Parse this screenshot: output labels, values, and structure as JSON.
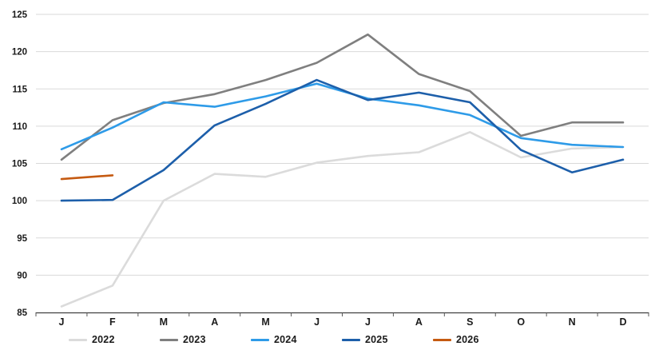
{
  "chart_data": {
    "type": "line",
    "title": "",
    "categories": [
      "J",
      "F",
      "M",
      "A",
      "M",
      "J",
      "J",
      "A",
      "S",
      "O",
      "N",
      "D"
    ],
    "y_axis": {
      "min": 85,
      "max": 125,
      "step": 5,
      "tick_labels": [
        "85",
        "90",
        "95",
        "100",
        "105",
        "110",
        "115",
        "120",
        "125"
      ]
    },
    "grid": "horizontal",
    "legend_position": "bottom",
    "series": [
      {
        "name": "2022",
        "color": "#DBDBDB",
        "values": [
          85.8,
          88.6,
          100.0,
          103.6,
          103.2,
          105.1,
          106.0,
          106.5,
          109.2,
          105.8,
          107.0,
          107.2
        ]
      },
      {
        "name": "2023",
        "color": "#7F7F7F",
        "values": [
          105.5,
          110.8,
          113.1,
          114.3,
          116.2,
          118.5,
          122.3,
          117.0,
          114.7,
          108.7,
          110.5,
          110.5
        ]
      },
      {
        "name": "2024",
        "color": "#2E9BE8",
        "values": [
          106.9,
          109.8,
          113.2,
          112.6,
          114.0,
          115.7,
          113.7,
          112.8,
          111.5,
          108.4,
          107.5,
          107.2
        ]
      },
      {
        "name": "2025",
        "color": "#1D5FAA",
        "values": [
          100.0,
          100.1,
          104.1,
          110.1,
          113.0,
          116.2,
          113.5,
          114.5,
          113.2,
          106.8,
          103.8,
          105.5
        ]
      },
      {
        "name": "2026",
        "color": "#C55A11",
        "values": [
          102.9,
          103.4,
          null,
          null,
          null,
          null,
          null,
          null,
          null,
          null,
          null,
          null
        ]
      }
    ]
  },
  "style": {
    "background": "#FFFFFF",
    "gridline_color": "#D9D9D9",
    "axis_color": "#404040",
    "tick_color": "#595959",
    "label_color": "#1A1A1A"
  }
}
